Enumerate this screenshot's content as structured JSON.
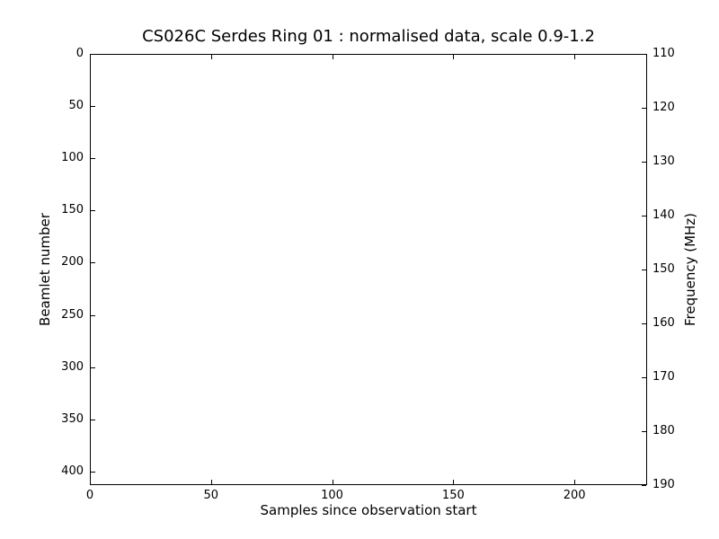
{
  "chart_data": {
    "type": "heatmap",
    "title": "CS026C Serdes Ring 01 : normalised data, scale 0.9-1.2",
    "station": "CS026C",
    "serdes_ring": "01",
    "normalisation_scale": "0.9-1.2",
    "xlabel": "Samples since observation start",
    "ylabel_left": "Beamlet number",
    "ylabel_right": "Frequency (MHz)",
    "x_ticks": [
      0,
      50,
      100,
      150,
      200
    ],
    "xlim": [
      0,
      230
    ],
    "y_left_ticks": [
      0,
      50,
      100,
      150,
      200,
      250,
      300,
      350,
      400
    ],
    "ylim_left": [
      0,
      413
    ],
    "y_left_inverted": true,
    "y_right_ticks": [
      110,
      120,
      130,
      140,
      150,
      160,
      170,
      180,
      190
    ],
    "ylim_right": [
      110,
      190
    ],
    "grid": false,
    "legend": "none",
    "plot_area_empty": true,
    "colors": {
      "background": "#ffffff",
      "axes": "#000000",
      "text": "#000000"
    }
  }
}
